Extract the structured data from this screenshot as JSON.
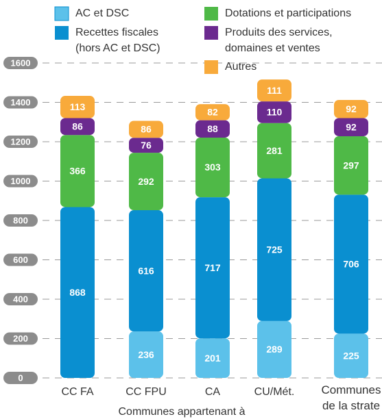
{
  "chart_data": {
    "type": "stacked_bar",
    "categories": [
      "CC FA",
      "CC FPU",
      "CA",
      "CU/Mét.",
      "Communes de la strate"
    ],
    "series": [
      {
        "name": "AC et DSC",
        "color": "#5cc1ea",
        "values": [
          null,
          236,
          201,
          289,
          225
        ]
      },
      {
        "name": "Recettes fiscales (hors AC et DSC)",
        "color": "#0a8fd0",
        "values": [
          868,
          616,
          717,
          725,
          706
        ]
      },
      {
        "name": "Dotations et participations",
        "color": "#4fb947",
        "values": [
          366,
          292,
          303,
          281,
          297
        ]
      },
      {
        "name": "Produits des services, domaines et ventes",
        "color": "#6b2a8f",
        "values": [
          86,
          76,
          88,
          110,
          92
        ]
      },
      {
        "name": "Autres",
        "color": "#f8aa3b",
        "values": [
          113,
          86,
          82,
          111,
          92
        ]
      }
    ],
    "annotation": "Communes appartenant à",
    "ylim": [
      0,
      1600
    ],
    "yticks": [
      0,
      200,
      400,
      600,
      800,
      1000,
      1200,
      1400,
      1600
    ],
    "grid": true
  }
}
